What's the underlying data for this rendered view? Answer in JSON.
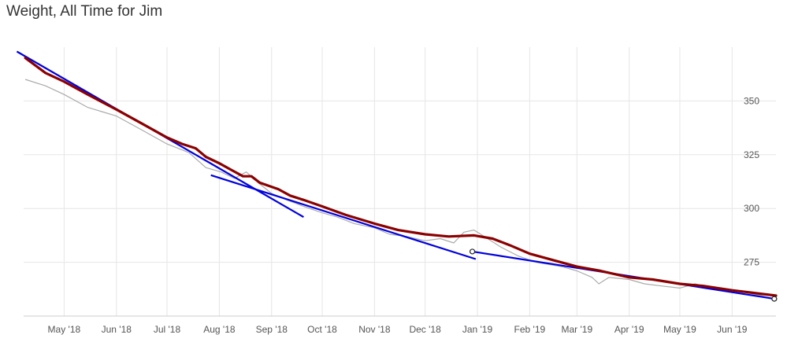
{
  "chart_data": {
    "type": "line",
    "title": "Weight, All Time for Jim",
    "xlabel": "",
    "ylabel": "",
    "grid": true,
    "x_axis": {
      "type": "date",
      "range": [
        "2018-04-07",
        "2019-06-27"
      ],
      "ticks": [
        {
          "label": "May '18",
          "date": "2018-05-01"
        },
        {
          "label": "Jun '18",
          "date": "2018-06-01"
        },
        {
          "label": "Jul '18",
          "date": "2018-07-01"
        },
        {
          "label": "Aug '18",
          "date": "2018-08-01"
        },
        {
          "label": "Sep '18",
          "date": "2018-09-01"
        },
        {
          "label": "Oct '18",
          "date": "2018-10-01"
        },
        {
          "label": "Nov '18",
          "date": "2018-11-01"
        },
        {
          "label": "Dec '18",
          "date": "2018-12-01"
        },
        {
          "label": "Jan '19",
          "date": "2019-01-01"
        },
        {
          "label": "Feb '19",
          "date": "2019-02-01"
        },
        {
          "label": "Mar '19",
          "date": "2019-03-01"
        },
        {
          "label": "Apr '19",
          "date": "2019-04-01"
        },
        {
          "label": "May '19",
          "date": "2019-05-01"
        },
        {
          "label": "Jun '19",
          "date": "2019-06-01"
        }
      ]
    },
    "y_axis": {
      "range": [
        250,
        375
      ],
      "ticks": [
        275,
        300,
        325,
        350
      ],
      "position": "right"
    },
    "series": [
      {
        "role": "raw",
        "color": "#aaaaaa",
        "points": [
          [
            "2018-04-08",
            360
          ],
          [
            "2018-04-20",
            357
          ],
          [
            "2018-05-01",
            353
          ],
          [
            "2018-05-15",
            347
          ],
          [
            "2018-06-01",
            343
          ],
          [
            "2018-06-15",
            337
          ],
          [
            "2018-07-01",
            330
          ],
          [
            "2018-07-14",
            326
          ],
          [
            "2018-07-24",
            319
          ],
          [
            "2018-08-02",
            317
          ],
          [
            "2018-08-10",
            314
          ],
          [
            "2018-08-17",
            317
          ],
          [
            "2018-08-24",
            312
          ],
          [
            "2018-09-01",
            307
          ],
          [
            "2018-09-10",
            304
          ],
          [
            "2018-09-20",
            301
          ],
          [
            "2018-10-01",
            298
          ],
          [
            "2018-10-10",
            296
          ],
          [
            "2018-10-20",
            293
          ],
          [
            "2018-11-01",
            291
          ],
          [
            "2018-11-10",
            288
          ],
          [
            "2018-11-20",
            287
          ],
          [
            "2018-12-01",
            285
          ],
          [
            "2018-12-10",
            286
          ],
          [
            "2018-12-18",
            284
          ],
          [
            "2018-12-24",
            289
          ],
          [
            "2018-12-30",
            290
          ],
          [
            "2019-01-05",
            287
          ],
          [
            "2019-01-15",
            282
          ],
          [
            "2019-01-25",
            278
          ],
          [
            "2019-02-05",
            275
          ],
          [
            "2019-02-20",
            273
          ],
          [
            "2019-03-01",
            271
          ],
          [
            "2019-03-10",
            268
          ],
          [
            "2019-03-14",
            265
          ],
          [
            "2019-03-20",
            268
          ],
          [
            "2019-04-01",
            267
          ],
          [
            "2019-04-10",
            265
          ],
          [
            "2019-04-20",
            264
          ],
          [
            "2019-05-01",
            263
          ],
          [
            "2019-05-10",
            265
          ],
          [
            "2019-05-20",
            263
          ],
          [
            "2019-06-01",
            262
          ],
          [
            "2019-06-15",
            260
          ],
          [
            "2019-06-26",
            258
          ]
        ]
      },
      {
        "role": "trend",
        "color": "#8b0000",
        "points": [
          [
            "2018-04-08",
            370
          ],
          [
            "2018-04-20",
            363
          ],
          [
            "2018-05-01",
            359
          ],
          [
            "2018-05-15",
            353
          ],
          [
            "2018-06-01",
            346
          ],
          [
            "2018-06-15",
            340
          ],
          [
            "2018-07-01",
            333
          ],
          [
            "2018-07-10",
            330
          ],
          [
            "2018-07-18",
            328
          ],
          [
            "2018-07-24",
            324
          ],
          [
            "2018-08-01",
            321
          ],
          [
            "2018-08-08",
            318
          ],
          [
            "2018-08-15",
            315
          ],
          [
            "2018-08-20",
            315
          ],
          [
            "2018-08-25",
            312
          ],
          [
            "2018-09-05",
            309
          ],
          [
            "2018-09-12",
            306
          ],
          [
            "2018-09-20",
            304
          ],
          [
            "2018-10-01",
            301
          ],
          [
            "2018-10-15",
            297
          ],
          [
            "2018-11-01",
            293
          ],
          [
            "2018-11-15",
            290
          ],
          [
            "2018-12-01",
            288
          ],
          [
            "2018-12-15",
            287
          ],
          [
            "2018-12-30",
            287.5
          ],
          [
            "2019-01-10",
            286
          ],
          [
            "2019-01-20",
            283
          ],
          [
            "2019-02-01",
            279
          ],
          [
            "2019-02-15",
            276
          ],
          [
            "2019-03-01",
            273
          ],
          [
            "2019-03-15",
            271
          ],
          [
            "2019-04-01",
            268
          ],
          [
            "2019-04-15",
            267
          ],
          [
            "2019-05-01",
            265
          ],
          [
            "2019-05-15",
            264
          ],
          [
            "2019-06-01",
            262
          ],
          [
            "2019-06-27",
            259.5
          ]
        ]
      }
    ],
    "trendlines": [
      {
        "color": "#0000dd",
        "points": [
          [
            "2018-04-03",
            373
          ],
          [
            "2018-09-20",
            296
          ]
        ]
      },
      {
        "color": "#0000dd",
        "points": [
          [
            "2018-07-27",
            315.5
          ],
          [
            "2018-12-31",
            276.5
          ]
        ]
      },
      {
        "color": "#0000dd",
        "points": [
          [
            "2018-12-29",
            280
          ],
          [
            "2019-06-26",
            258
          ]
        ]
      }
    ],
    "markers": [
      {
        "date": "2018-12-29",
        "value": 280
      },
      {
        "date": "2019-06-26",
        "value": 258
      }
    ]
  }
}
